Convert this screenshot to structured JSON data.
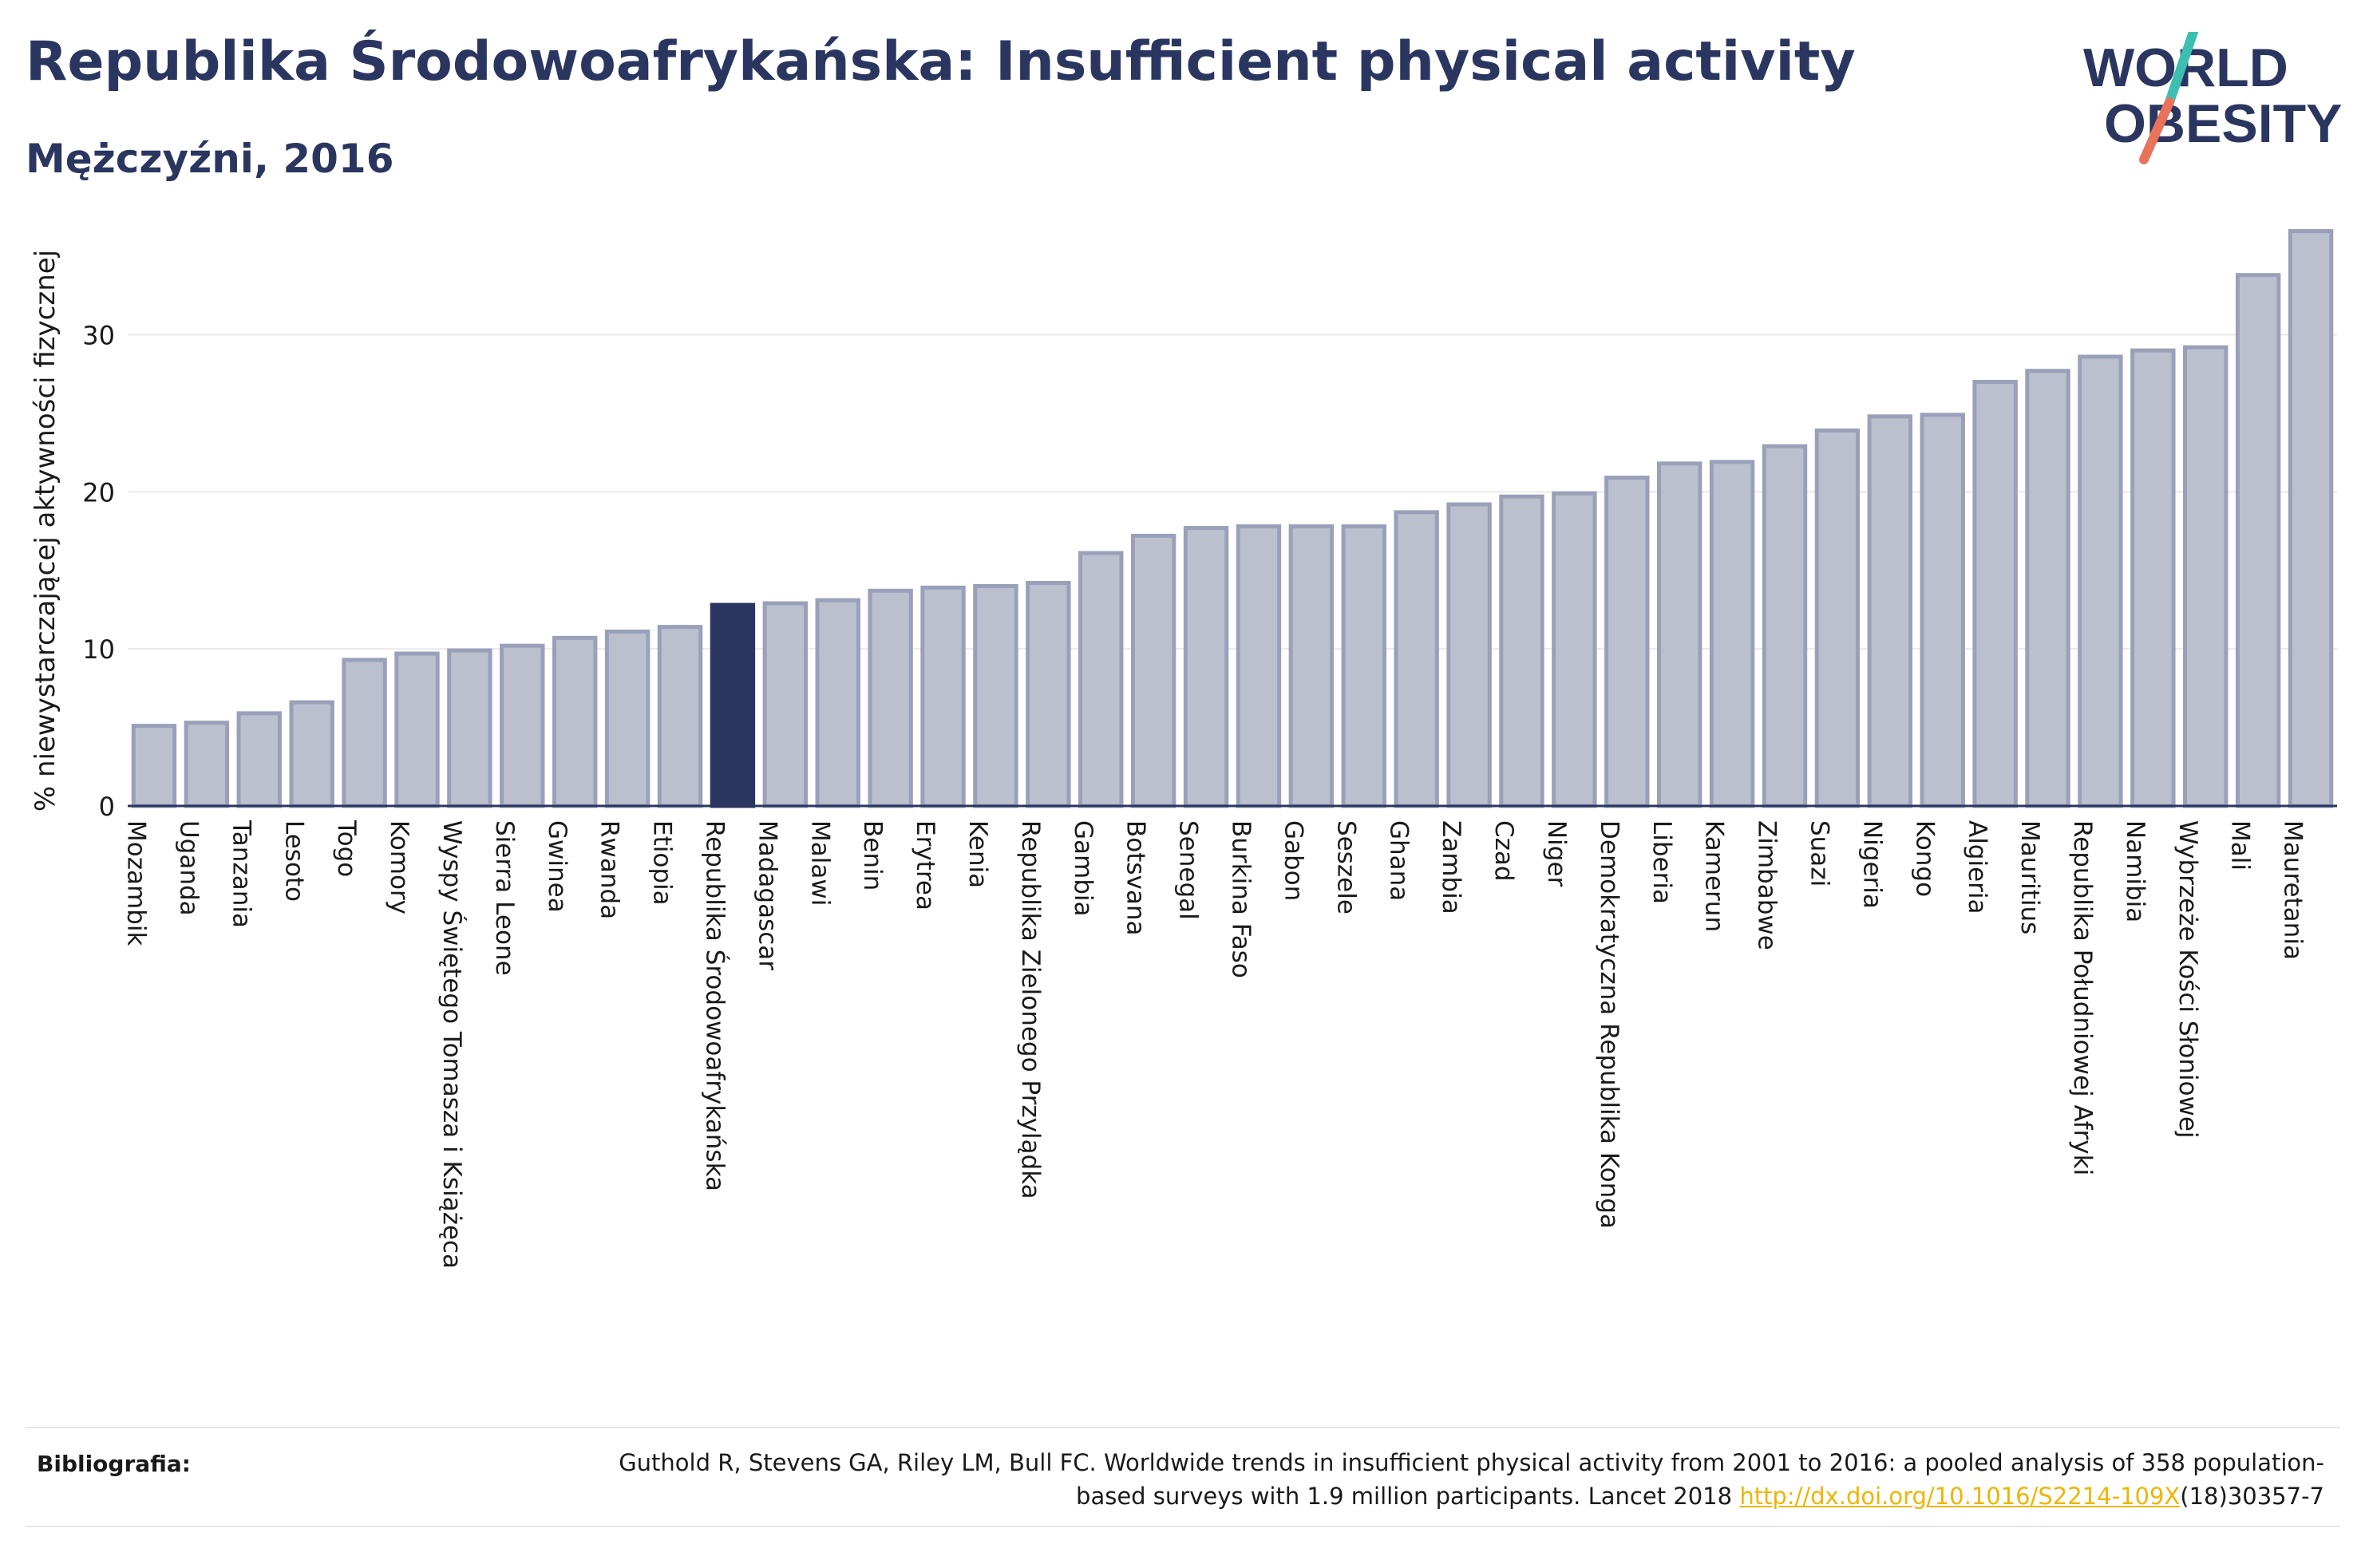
{
  "header": {
    "title": "Republika Środowoafrykańska: Insufficient physical activity",
    "subtitle": "Mężczyźni, 2016"
  },
  "logo": {
    "line1": "WORLD",
    "line2": "OBESITY",
    "colors": {
      "text": "#2b3660",
      "slash_top": "#3bbfb0",
      "slash_bottom": "#e8735a"
    }
  },
  "chart_data": {
    "type": "bar",
    "ylabel": "% niewystarczającej aktywności fizycznej",
    "ylim": [
      0,
      38
    ],
    "yticks": [
      0,
      10,
      20,
      30
    ],
    "grid": true,
    "highlight": "Republika Środowoafrykańska",
    "colors": {
      "bar": "#bcc0ce",
      "bar_edge": "#9aa0b9",
      "highlight": "#2b3660"
    },
    "categories": [
      "Mozambik",
      "Uganda",
      "Tanzania",
      "Lesoto",
      "Togo",
      "Komory",
      "Wyspy Świętego Tomasza i Książęca",
      "Sierra Leone",
      "Gwinea",
      "Rwanda",
      "Etiopia",
      "Republika Środowoafrykańska",
      "Madagascar",
      "Malawi",
      "Benin",
      "Erytrea",
      "Kenia",
      "Republika Zielonego Przylądka",
      "Gambia",
      "Botsvana",
      "Senegal",
      "Burkina Faso",
      "Gabon",
      "Seszele",
      "Ghana",
      "Zambia",
      "Czad",
      "Niger",
      "Demokratyczna Republika Konga",
      "Liberia",
      "Kamerun",
      "Zimbabwe",
      "Suazi",
      "Nigeria",
      "Kongo",
      "Algieria",
      "Mauritius",
      "Republika Południowej Afryki",
      "Namibia",
      "Wybrzeże Kości Słoniowej",
      "Mali",
      "Mauretania"
    ],
    "values": [
      5.1,
      5.3,
      5.9,
      6.6,
      9.3,
      9.7,
      9.9,
      10.2,
      10.7,
      11.1,
      11.4,
      12.8,
      12.9,
      13.1,
      13.7,
      13.9,
      14.0,
      14.2,
      16.1,
      17.2,
      17.7,
      17.8,
      17.8,
      17.8,
      18.7,
      19.2,
      19.7,
      19.9,
      20.9,
      21.8,
      21.9,
      22.9,
      23.9,
      24.8,
      24.9,
      27.0,
      27.7,
      28.6,
      29.0,
      29.2,
      33.8,
      36.6
    ]
  },
  "bibliography": {
    "label": "Bibliografia:",
    "text_before": "Guthold R, Stevens GA, Riley LM, Bull FC. Worldwide trends in insufficient physical activity from 2001 to 2016: a pooled analysis of 358 population-based surveys with 1.9 million participants. Lancet 2018 ",
    "link": "http://dx.doi.org/10.1016/S2214-109X",
    "text_after": "(18)30357-7"
  }
}
